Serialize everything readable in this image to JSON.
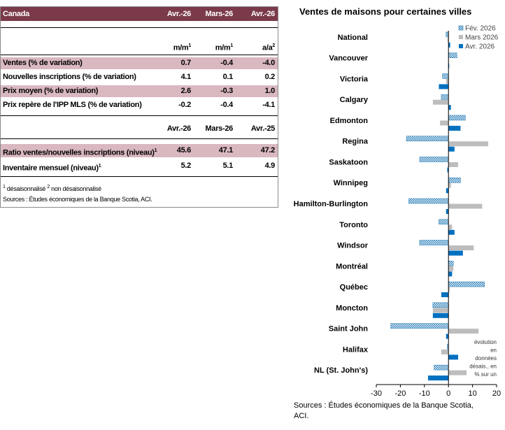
{
  "table": {
    "header": {
      "label": "Canada",
      "c1": "Avr.-26",
      "c2": "Mars-26",
      "c3": "Avr.-26"
    },
    "units": {
      "c1": "m/m",
      "c1_sup": "1",
      "c2": "m/m",
      "c2_sup": "1",
      "c3": "a/a",
      "c3_sup": "2"
    },
    "rows": [
      {
        "label": "Ventes (% de variation)",
        "c1": "0.7",
        "c2": "-0.4",
        "c3": "-4.0"
      },
      {
        "label": "Nouvelles inscriptions (% de variation)",
        "c1": "4.1",
        "c2": "0.1",
        "c3": "0.2"
      },
      {
        "label": "Prix moyen (% de variation)",
        "c1": "2.6",
        "c2": "-0.3",
        "c3": "1.0"
      },
      {
        "label": "Prix repère de l'IPP MLS (% de variation)",
        "c1": "-0.2",
        "c2": "-0.4",
        "c3": "-4.1"
      }
    ],
    "subheader": {
      "c1": "Avr.-26",
      "c2": "Mars-26",
      "c3": "Avr.-25"
    },
    "level_rows": [
      {
        "label": "Ratio ventes/nouvelles inscriptions (niveau)",
        "sup": "1",
        "c1": "45.6",
        "c2": "47.1",
        "c3": "47.2"
      },
      {
        "label": "Inventaire mensuel (niveau)",
        "sup": "1",
        "c1": "5.2",
        "c2": "5.1",
        "c3": "4.9"
      }
    ],
    "footnote": {
      "sup1": "1",
      "text1": " désaisonnalisé ",
      "sup2": "2",
      "text2": " non désaisonnalisé"
    },
    "source": "Sources : Études économiques de la Banque Scotia, ACI."
  },
  "chart_data": {
    "type": "bar",
    "orientation": "horizontal",
    "title": "Ventes de maisons pour certaines villes",
    "categories": [
      "National",
      "Vancouver",
      "Victoria",
      "Calgary",
      "Edmonton",
      "Regina",
      "Saskatoon",
      "Winnipeg",
      "Hamilton-Burlington",
      "Toronto",
      "Windsor",
      "Montréal",
      "Québec",
      "Moncton",
      "Saint John",
      "Halifax",
      "NL (St. John's)"
    ],
    "series": [
      {
        "name": "Fév. 2026",
        "color": "#1f78b4",
        "pattern": "dotted",
        "values": [
          -1.0,
          3.5,
          -2.5,
          -3.0,
          7.0,
          -17.5,
          -12.0,
          5.0,
          -16.5,
          -4.0,
          -12.0,
          2.0,
          15.0,
          -6.5,
          -24.0,
          -0.5,
          -6.0
        ]
      },
      {
        "name": "Mars 2026",
        "color": "#bdbdbd",
        "pattern": "solid",
        "values": [
          -0.4,
          0.0,
          -1.0,
          -6.5,
          -3.5,
          16.5,
          4.0,
          1.0,
          14.0,
          1.5,
          10.5,
          2.0,
          0.5,
          -6.5,
          12.5,
          -3.0,
          7.5
        ]
      },
      {
        "name": "Avr. 2026",
        "color": "#0070c0",
        "pattern": "solid",
        "values": [
          0.7,
          0.3,
          -4.0,
          1.0,
          5.0,
          2.5,
          -0.5,
          -1.0,
          -1.0,
          2.5,
          6.0,
          1.5,
          -3.0,
          -6.5,
          -1.0,
          4.0,
          -8.5
        ]
      }
    ],
    "xlim": [
      -30,
      20
    ],
    "xticks": [
      -30,
      -20,
      -10,
      0,
      10,
      20
    ],
    "legend_position": "top-right",
    "annotation": [
      "évolution",
      "en",
      "données",
      "désais., en",
      "% sur un"
    ],
    "source_lines": [
      "Sources : Études économiques de la Banque Scotia,",
      "ACI."
    ]
  }
}
